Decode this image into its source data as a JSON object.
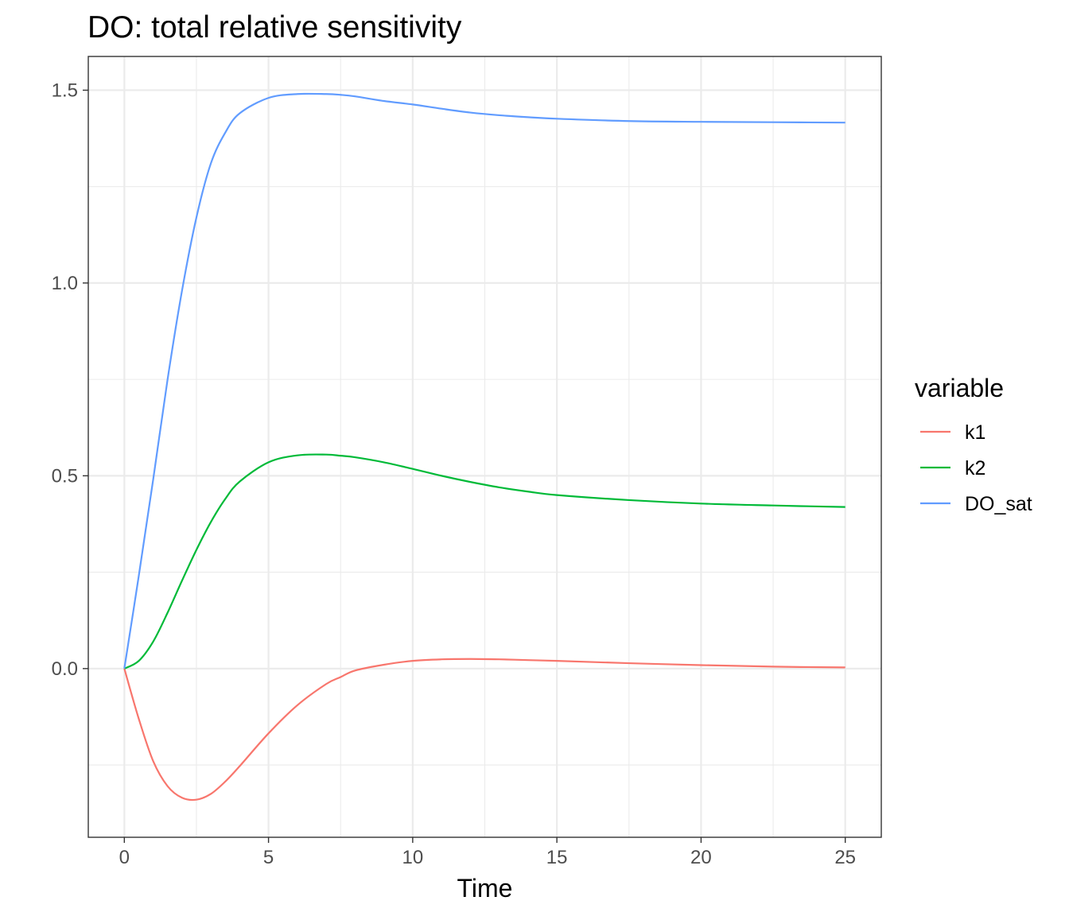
{
  "chart_data": {
    "type": "line",
    "title": "DO: total relative sensitivity",
    "xlabel": "Time",
    "ylabel": "",
    "xlim": [
      -1.25,
      26.25
    ],
    "ylim": [
      -0.4375,
      1.5875
    ],
    "x_ticks": [
      0,
      5,
      10,
      15,
      20,
      25
    ],
    "x_tick_labels": [
      "0",
      "5",
      "10",
      "15",
      "20",
      "25"
    ],
    "y_ticks": [
      0.0,
      0.5,
      1.0,
      1.5
    ],
    "y_tick_labels": [
      "0.0",
      "0.5",
      "1.0",
      "1.5"
    ],
    "x_minor_ticks": [
      2.5,
      7.5,
      12.5,
      17.5,
      22.5
    ],
    "y_minor_ticks": [
      -0.25,
      0.25,
      0.75,
      1.25
    ],
    "grid": true,
    "legend": {
      "title": "variable",
      "position": "right"
    },
    "x": [
      0,
      0.5,
      1,
      1.5,
      2,
      2.5,
      3,
      3.5,
      4,
      5,
      6,
      7,
      7.5,
      8,
      9,
      10,
      11,
      12,
      13,
      14,
      15,
      17.5,
      20,
      22.5,
      25
    ],
    "series": [
      {
        "name": "k1",
        "color": "#F8766D",
        "values": [
          0,
          -0.13,
          -0.24,
          -0.305,
          -0.335,
          -0.34,
          -0.325,
          -0.293,
          -0.253,
          -0.168,
          -0.095,
          -0.04,
          -0.022,
          -0.005,
          0.01,
          0.02,
          0.024,
          0.025,
          0.024,
          0.022,
          0.02,
          0.014,
          0.009,
          0.005,
          0.003
        ]
      },
      {
        "name": "k2",
        "color": "#00BA38",
        "values": [
          0,
          0.02,
          0.07,
          0.145,
          0.228,
          0.308,
          0.38,
          0.44,
          0.485,
          0.535,
          0.553,
          0.555,
          0.552,
          0.548,
          0.535,
          0.518,
          0.5,
          0.484,
          0.47,
          0.459,
          0.45,
          0.437,
          0.428,
          0.423,
          0.419
        ]
      },
      {
        "name": "DO_sat",
        "color": "#619CFF",
        "values": [
          0,
          0.24,
          0.49,
          0.75,
          0.98,
          1.17,
          1.31,
          1.39,
          1.44,
          1.48,
          1.49,
          1.49,
          1.488,
          1.484,
          1.472,
          1.463,
          1.452,
          1.442,
          1.435,
          1.43,
          1.426,
          1.42,
          1.418,
          1.417,
          1.416
        ]
      }
    ]
  }
}
